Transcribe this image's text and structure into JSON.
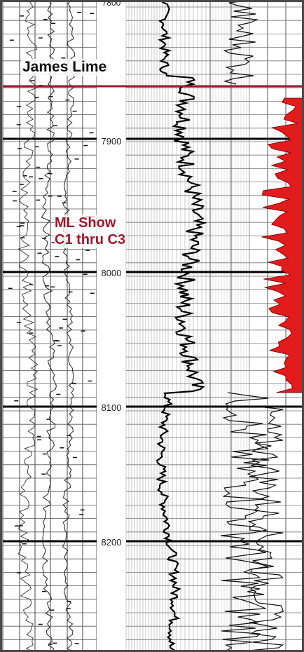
{
  "log": {
    "depth_markers": [
      "7900",
      "8000",
      "8100",
      "8200"
    ],
    "top_depth_partial": "7800",
    "formation_top": "James Lime",
    "show_annotation": {
      "line1": "ML Show",
      "line2": "C1 thru C3"
    },
    "colors": {
      "formation_line": "#9b1b30",
      "annotation_text": "#a3172b",
      "shading": "#e21c1c",
      "border": "#4a4a4a"
    }
  }
}
